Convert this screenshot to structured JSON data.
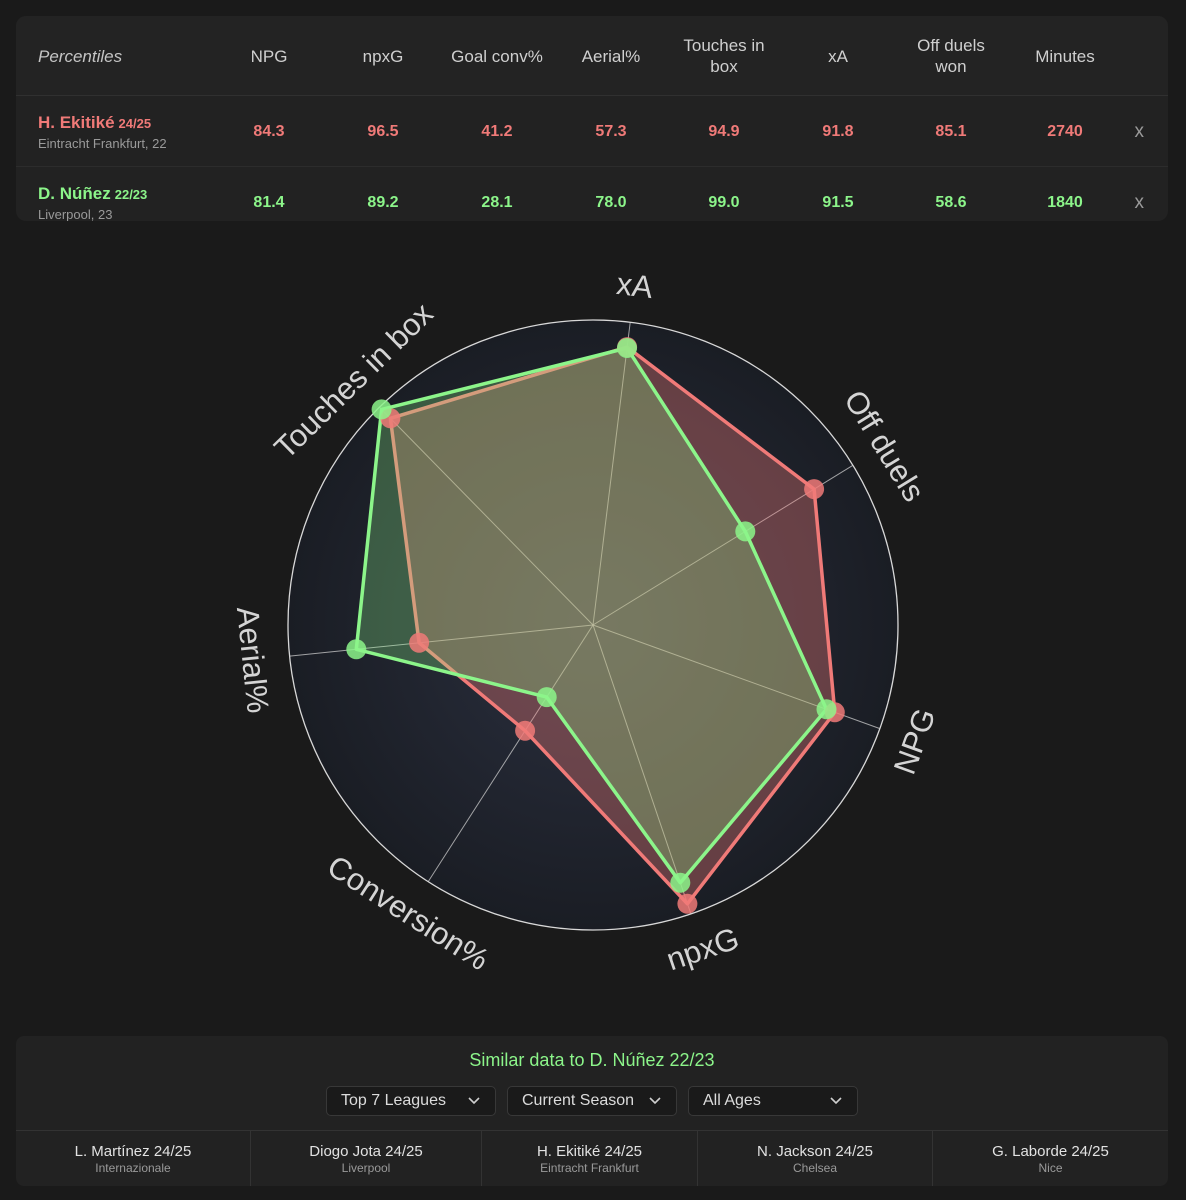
{
  "table": {
    "label": "Percentiles",
    "columns": [
      "NPG",
      "npxG",
      "Goal conv%",
      "Aerial%",
      "Touches in box",
      "xA",
      "Off duels won",
      "Minutes"
    ],
    "remove_label": "x",
    "players": [
      {
        "name": "H. Ekitiké",
        "season": "24/25",
        "club": "Eintracht Frankfurt, 22",
        "color": "#f07a78",
        "values": [
          "84.3",
          "96.5",
          "41.2",
          "57.3",
          "94.9",
          "91.8",
          "85.1",
          "2740"
        ]
      },
      {
        "name": "D. Núñez",
        "season": "22/23",
        "club": "Liverpool, 23",
        "color": "#8cf58a",
        "values": [
          "81.4",
          "89.2",
          "28.1",
          "78.0",
          "99.0",
          "91.5",
          "58.6",
          "1840"
        ]
      }
    ]
  },
  "chart_data": {
    "type": "radar",
    "axes": [
      "xA",
      "Off duels",
      "NPG",
      "npxG",
      "Conversion%",
      "Aerial%",
      "Touches in box"
    ],
    "range": [
      0,
      100
    ],
    "series": [
      {
        "name": "H. Ekitiké 24/25",
        "color": "#f07a78",
        "values": [
          91.8,
          85.1,
          84.3,
          96.5,
          41.2,
          57.3,
          94.9
        ]
      },
      {
        "name": "D. Núñez 22/23",
        "color": "#8cf58a",
        "values": [
          91.5,
          58.6,
          81.4,
          89.2,
          28.1,
          78.0,
          99.0
        ]
      }
    ]
  },
  "similar": {
    "title": "Similar data to D. Núñez 22/23",
    "filters": [
      {
        "value": "Top 7 Leagues"
      },
      {
        "value": "Current Season"
      },
      {
        "value": "All Ages"
      }
    ],
    "items": [
      {
        "name": "L. Martínez 24/25",
        "club": "Internazionale"
      },
      {
        "name": "Diogo Jota 24/25",
        "club": "Liverpool"
      },
      {
        "name": "H. Ekitiké 24/25",
        "club": "Eintracht Frankfurt"
      },
      {
        "name": "N. Jackson 24/25",
        "club": "Chelsea"
      },
      {
        "name": "G. Laborde 24/25",
        "club": "Nice"
      }
    ]
  }
}
